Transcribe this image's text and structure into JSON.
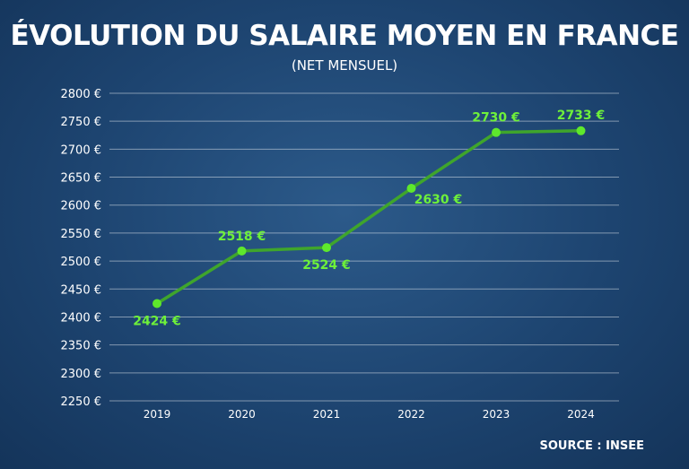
{
  "chart_data": {
    "type": "line",
    "title": "ÉVOLUTION DU SALAIRE MOYEN EN FRANCE",
    "subtitle": "(NET MENSUEL)",
    "xlabel": "",
    "ylabel": "",
    "categories": [
      "2019",
      "2020",
      "2021",
      "2022",
      "2023",
      "2024"
    ],
    "series": [
      {
        "values": [
          2424,
          2518,
          2524,
          2630,
          2730,
          2733
        ]
      }
    ],
    "data_labels": [
      "2424 €",
      "2518 €",
      "2524 €",
      "2630 €",
      "2730 €",
      "2733 €"
    ],
    "yticks": [
      "2250 €",
      "2300 €",
      "2350 €",
      "2400 €",
      "2450 €",
      "2500 €",
      "2550 €",
      "2600 €",
      "2650 €",
      "2700 €",
      "2750 €",
      "2800 €"
    ],
    "ylim": [
      2250,
      2800
    ],
    "grid": true,
    "line_color": "#3fa52c",
    "point_color": "#5ee82c",
    "label_color": "#6ef03a"
  },
  "source": "SOURCE :  INSEE"
}
